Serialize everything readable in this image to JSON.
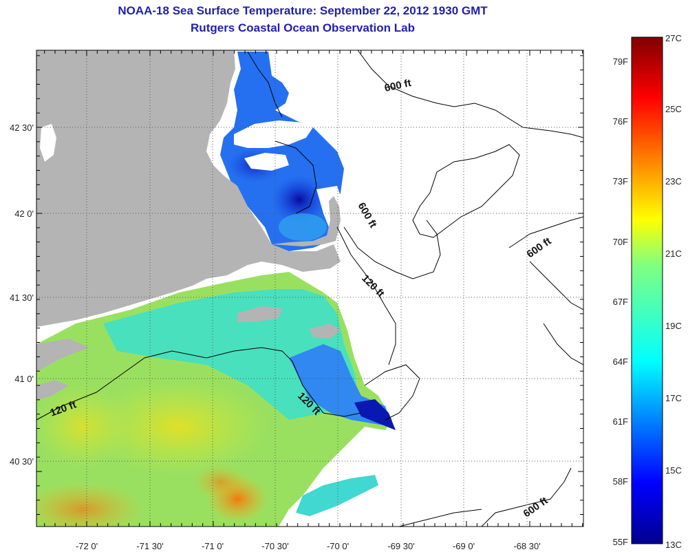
{
  "header": {
    "title": "NOAA-18 Sea Surface Temperature:  September 22, 2012 1930 GMT",
    "subtitle": "Rutgers Coastal Ocean Observation Lab"
  },
  "map": {
    "region": "Southern New England / Gulf of Maine",
    "lon_range": [
      -72.25,
      -68.0
    ],
    "lat_range": [
      40.2,
      42.95
    ],
    "longitude_labels": [
      "-72 0'",
      "-71 30'",
      "-71 0'",
      "-70 30'",
      "-70 0'",
      "-69 30'",
      "-69 0'",
      "-68 30'"
    ],
    "latitude_labels": [
      "42 30'",
      "42 0'",
      "41 30'",
      "41 0'",
      "40 30'"
    ],
    "grid": "dotted",
    "land_color": "#b4b4b4",
    "no_data_color": "#ffffff",
    "contour_labels": [
      {
        "text": "600 ft"
      },
      {
        "text": "600 ft"
      },
      {
        "text": "600 ft"
      },
      {
        "text": "600 ft"
      },
      {
        "text": "120 ft"
      },
      {
        "text": "120 ft"
      },
      {
        "text": "120 ft"
      }
    ]
  },
  "colorbar": {
    "fahrenheit_labels": [
      "79F",
      "76F",
      "73F",
      "70F",
      "67F",
      "64F",
      "61F",
      "58F",
      "55F"
    ],
    "celsius_labels": [
      "27C",
      "25C",
      "23C",
      "21C",
      "19C",
      "17C",
      "15C",
      "13C"
    ],
    "min_c": 13,
    "max_c": 27
  }
}
